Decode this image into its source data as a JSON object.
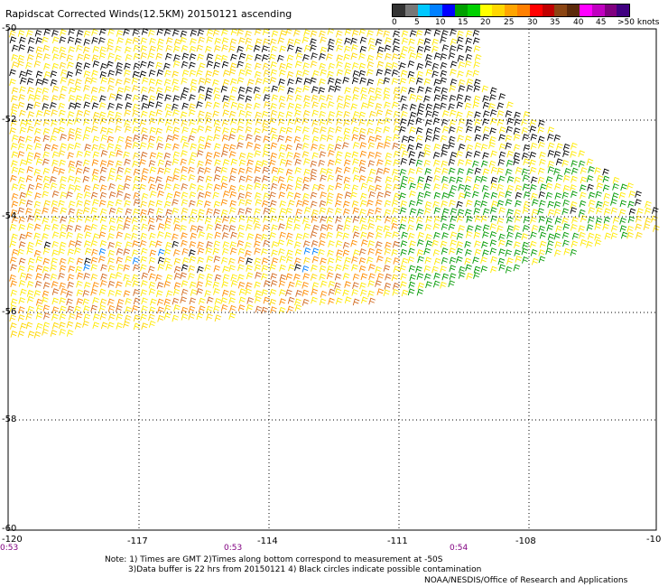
{
  "title": "Rapidscat Corrected Winds(12.5KM) 20150121 ascending",
  "legend": {
    "colors": [
      "#333333",
      "#777777",
      "#00c8ff",
      "#0080ff",
      "#0000ff",
      "#00a000",
      "#00d000",
      "#ffff00",
      "#ffd700",
      "#ffa500",
      "#ff7f00",
      "#ff0000",
      "#c00000",
      "#8b4513",
      "#5c2a0a",
      "#ff00ff",
      "#c000c0",
      "#800080",
      "#400080"
    ],
    "labels": [
      "0",
      "5",
      "10",
      "15",
      "20",
      "25",
      "30",
      "35",
      "40",
      "45",
      ">50 knots"
    ]
  },
  "axes": {
    "lat_labels": [
      "-50",
      "-52",
      "-54",
      "-56",
      "-58",
      "-60"
    ],
    "lon_labels": [
      "-120",
      "-117",
      "-114",
      "-111",
      "-108",
      "-10"
    ]
  },
  "times": [
    "0:53",
    "0:53",
    "0:54"
  ],
  "notes": {
    "line1": "Note: 1) Times are GMT 2)Times along bottom correspond to measurement at -50S",
    "line2": "3)Data buffer is 22 hrs from 20150121 4) Black circles indicate possible contamination"
  },
  "credit": "NOAA/NESDIS/Office of Research and Applications",
  "colors": {
    "frame": "#000000",
    "grid": "#000000"
  }
}
